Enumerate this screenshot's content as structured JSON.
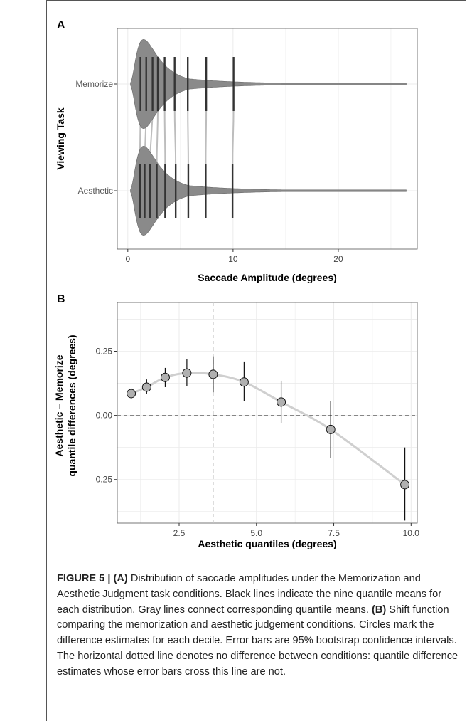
{
  "chart_data": [
    {
      "panel": "A",
      "type": "violin",
      "xlabel": "Saccade Amplitude (degrees)",
      "ylabel": "Viewing Task",
      "xlim": [
        -1,
        27.5
      ],
      "xticks": [
        0,
        10,
        20
      ],
      "categories": [
        "Memorize",
        "Aesthetic"
      ],
      "quantiles": {
        "Memorize": [
          1.2,
          1.75,
          2.35,
          2.85,
          3.5,
          4.45,
          5.7,
          7.45,
          10.05
        ],
        "Aesthetic": [
          1.15,
          1.6,
          2.1,
          2.75,
          3.55,
          4.55,
          5.75,
          7.4,
          9.95
        ]
      },
      "max_amplitude": 26.5,
      "grid": true
    },
    {
      "panel": "B",
      "type": "scatter",
      "xlabel": "Aesthetic quantiles (degrees)",
      "ylabel_line1": "Aesthetic – Memorize",
      "ylabel_line2": "quantile differences (degrees)",
      "xlim": [
        0.5,
        10.2
      ],
      "ylim": [
        -0.42,
        0.44
      ],
      "xticks": [
        "2.5",
        "5.0",
        "7.5",
        "10.0"
      ],
      "xtick_values": [
        2.5,
        5.0,
        7.5,
        10.0
      ],
      "yticks": [
        "0.25",
        "0.00",
        "-0.25"
      ],
      "ytick_values": [
        0.25,
        0.0,
        -0.25
      ],
      "median_line_x": 3.6,
      "zero_line_y": 0.0,
      "points": [
        {
          "x": 0.95,
          "y": 0.085,
          "lo": 0.065,
          "hi": 0.105
        },
        {
          "x": 1.45,
          "y": 0.11,
          "lo": 0.085,
          "hi": 0.14
        },
        {
          "x": 2.05,
          "y": 0.148,
          "lo": 0.11,
          "hi": 0.185
        },
        {
          "x": 2.75,
          "y": 0.165,
          "lo": 0.115,
          "hi": 0.22
        },
        {
          "x": 3.6,
          "y": 0.16,
          "lo": 0.09,
          "hi": 0.23
        },
        {
          "x": 4.6,
          "y": 0.13,
          "lo": 0.055,
          "hi": 0.21
        },
        {
          "x": 5.8,
          "y": 0.052,
          "lo": -0.03,
          "hi": 0.135
        },
        {
          "x": 7.4,
          "y": -0.055,
          "lo": -0.165,
          "hi": 0.055
        },
        {
          "x": 9.8,
          "y": -0.27,
          "lo": -0.41,
          "hi": -0.125
        }
      ],
      "grid": true
    }
  ],
  "panels": {
    "a_label": "A",
    "b_label": "B"
  },
  "caption": {
    "label": "FIGURE 5 | ",
    "part_a_label": "(A)",
    "part_a_text": " Distribution of saccade amplitudes under the Memorization and Aesthetic Judgment task conditions. Black lines indicate the nine quantile means for each distribution. Gray lines connect corresponding quantile means. ",
    "part_b_label": "(B)",
    "part_b_text": " Shift function comparing the memorization and aesthetic judgement conditions. Circles mark the difference estimates for each decile. Error bars are 95% bootstrap confidence intervals. The horizontal dotted line denotes no difference between conditions: quantile difference estimates whose error bars cross this line are not."
  },
  "colors": {
    "violin_fill": "#8a8a8a",
    "quantile_line": "#333333",
    "connector": "#bdbdbd",
    "point_fill": "#b0b0b0",
    "curve": "#cfcfcf",
    "grid": "#ebebeb"
  }
}
